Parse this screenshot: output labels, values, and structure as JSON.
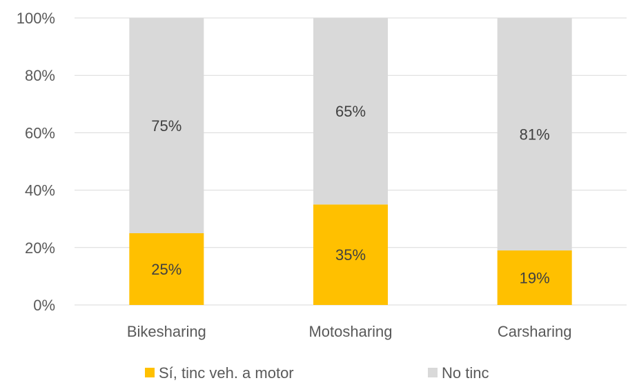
{
  "chart_data": {
    "type": "bar",
    "stacked": true,
    "percent": true,
    "categories": [
      "Bikesharing",
      "Motosharing",
      "Carsharing"
    ],
    "series": [
      {
        "name": "Sí, tinc veh. a motor",
        "values": [
          25,
          35,
          19
        ],
        "labels": [
          "25%",
          "35%",
          "19%"
        ],
        "color": "#FFC000"
      },
      {
        "name": "No tinc",
        "values": [
          75,
          65,
          81
        ],
        "labels": [
          "75%",
          "65%",
          "81%"
        ],
        "color": "#D9D9D9"
      }
    ],
    "ylim": [
      0,
      100
    ],
    "yticks": [
      "0%",
      "20%",
      "40%",
      "60%",
      "80%",
      "100%"
    ],
    "grid": true,
    "legend": "bottom",
    "title": "",
    "xlabel": "",
    "ylabel": ""
  }
}
